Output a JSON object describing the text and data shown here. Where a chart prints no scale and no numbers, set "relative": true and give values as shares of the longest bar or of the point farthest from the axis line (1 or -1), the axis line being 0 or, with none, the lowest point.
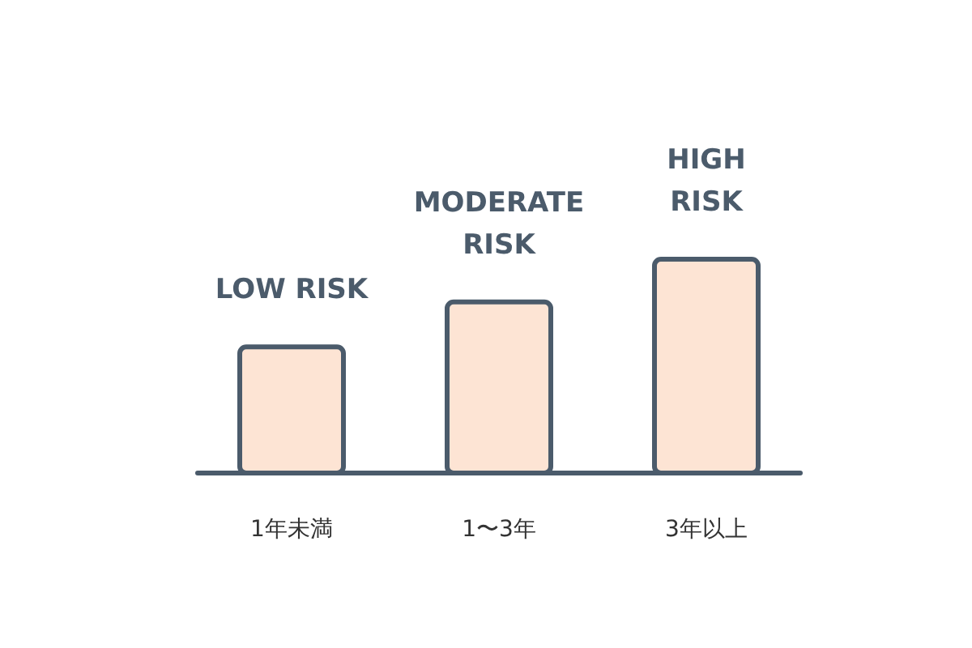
{
  "chart_data": {
    "type": "bar",
    "relative": true,
    "categories": [
      "1年未満",
      "1〜3年",
      "3年以上"
    ],
    "values": [
      0.59,
      0.8,
      1
    ],
    "color": "#fde4d4",
    "annotations": [
      {
        "text": "LOW RISK",
        "x": "1年未満",
        "y": 0.59
      },
      {
        "text": "MODERATE\nRISK",
        "x": "1〜3年",
        "y": 0.8
      },
      {
        "text": "HIGH\nRISK",
        "x": "3年以上",
        "y": 1
      }
    ]
  }
}
